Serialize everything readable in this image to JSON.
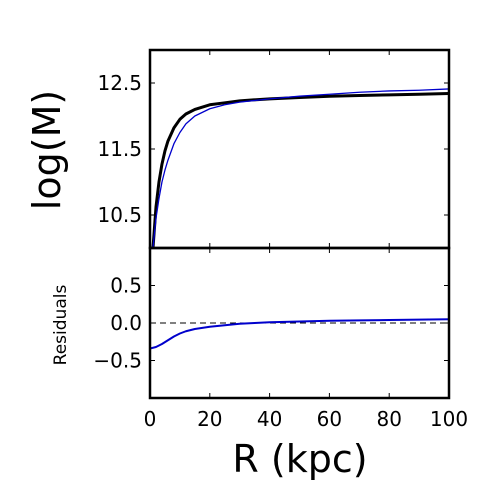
{
  "chart_data": [
    {
      "type": "line",
      "panel": "top",
      "title": "",
      "xlabel": "",
      "ylabel": "log(M)",
      "xlim": [
        0,
        100
      ],
      "ylim": [
        10.0,
        13.0
      ],
      "yticks": [
        {
          "value": 10.5,
          "label": "10.5"
        },
        {
          "value": 11.5,
          "label": "11.5"
        },
        {
          "value": 12.5,
          "label": "12.5"
        }
      ],
      "series": [
        {
          "color": "#000000",
          "linewidth": 3,
          "x": [
            1,
            2,
            3,
            4,
            5,
            6,
            8,
            10,
            12,
            15,
            20,
            25,
            30,
            40,
            50,
            60,
            70,
            80,
            90,
            100
          ],
          "y": [
            10.0,
            10.62,
            11.0,
            11.27,
            11.47,
            11.62,
            11.82,
            11.95,
            12.03,
            12.1,
            12.17,
            12.2,
            12.23,
            12.26,
            12.28,
            12.3,
            12.31,
            12.32,
            12.33,
            12.34
          ]
        },
        {
          "color": "#0000cc",
          "linewidth": 1.3,
          "x": [
            1,
            2,
            3,
            4,
            5,
            6,
            8,
            10,
            12,
            15,
            20,
            25,
            30,
            40,
            50,
            60,
            70,
            80,
            90,
            100
          ],
          "y": [
            10.0,
            10.45,
            10.75,
            11.0,
            11.18,
            11.33,
            11.58,
            11.75,
            11.88,
            12.0,
            12.11,
            12.17,
            12.21,
            12.26,
            12.3,
            12.33,
            12.36,
            12.38,
            12.39,
            12.41
          ]
        }
      ]
    },
    {
      "type": "line",
      "panel": "bottom",
      "title": "",
      "xlabel": "R (kpc)",
      "ylabel": "Residuals",
      "xlim": [
        0,
        100
      ],
      "ylim": [
        -1.0,
        1.0
      ],
      "xticks": [
        {
          "value": 0,
          "label": "0"
        },
        {
          "value": 20,
          "label": "20"
        },
        {
          "value": 40,
          "label": "40"
        },
        {
          "value": 60,
          "label": "60"
        },
        {
          "value": 80,
          "label": "80"
        },
        {
          "value": 100,
          "label": "100"
        }
      ],
      "yticks": [
        {
          "value": -0.5,
          "label": "−0.5"
        },
        {
          "value": 0.0,
          "label": "0.0"
        },
        {
          "value": 0.5,
          "label": "0.5"
        }
      ],
      "reference_line": {
        "y": 0.0,
        "color": "#000000",
        "style": "dashed"
      },
      "series": [
        {
          "color": "#0000cc",
          "linewidth": 2,
          "x": [
            0,
            2,
            4,
            6,
            8,
            10,
            12,
            15,
            20,
            25,
            30,
            35,
            40,
            50,
            60,
            70,
            80,
            90,
            100
          ],
          "y": [
            -0.34,
            -0.32,
            -0.28,
            -0.23,
            -0.18,
            -0.14,
            -0.11,
            -0.08,
            -0.05,
            -0.03,
            -0.01,
            0.0,
            0.01,
            0.02,
            0.03,
            0.035,
            0.04,
            0.045,
            0.05
          ]
        }
      ]
    }
  ]
}
